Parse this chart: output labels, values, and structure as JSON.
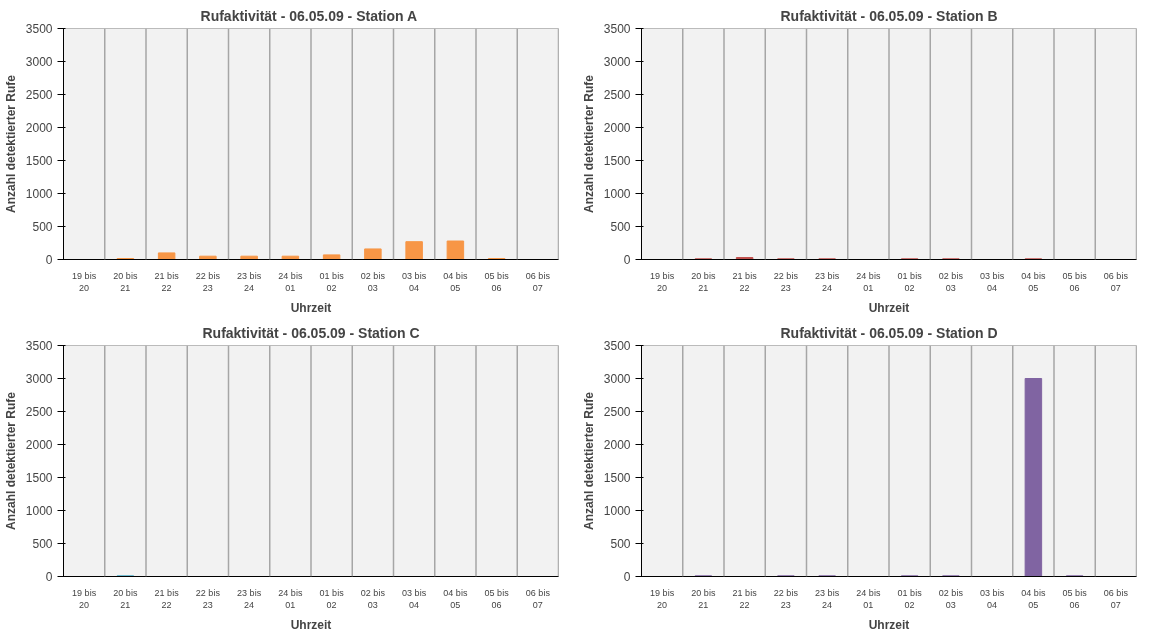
{
  "chart_data": [
    {
      "type": "bar",
      "title": "Rufaktivität - 06.05.09  - Station A",
      "xlabel": "Uhrzeit",
      "ylabel": "Anzahl detektierter Rufe",
      "categories": [
        "19 bis 20",
        "20 bis 21",
        "21 bis 22",
        "22 bis 23",
        "23 bis 24",
        "24 bis 01",
        "01 bis 02",
        "02 bis 03",
        "03 bis 04",
        "04 bis 05",
        "05 bis 06",
        "06 bis 07"
      ],
      "values": [
        0,
        15,
        100,
        50,
        50,
        50,
        70,
        160,
        270,
        280,
        15,
        0
      ],
      "color": "#f79646",
      "ylim": [
        0,
        3500
      ],
      "yticks": [
        0,
        500,
        1000,
        1500,
        2000,
        2500,
        3000,
        3500
      ],
      "grid": "x"
    },
    {
      "type": "bar",
      "title": "Rufaktivität - 06.05.09 - Station B",
      "xlabel": "Uhrzeit",
      "ylabel": "Anzahl detektierter Rufe",
      "categories": [
        "19 bis 20",
        "20 bis 21",
        "21 bis 22",
        "22 bis 23",
        "23 bis 24",
        "24 bis 01",
        "01 bis 02",
        "02 bis 03",
        "03 bis 04",
        "04 bis 05",
        "05 bis 06",
        "06 bis 07"
      ],
      "values": [
        0,
        10,
        30,
        10,
        10,
        0,
        10,
        10,
        0,
        10,
        0,
        0
      ],
      "color": "#c0504d",
      "ylim": [
        0,
        3500
      ],
      "yticks": [
        0,
        500,
        1000,
        1500,
        2000,
        2500,
        3000,
        3500
      ],
      "grid": "x"
    },
    {
      "type": "bar",
      "title": "Rufaktivität - 06.05.09 - Station C",
      "xlabel": "Uhrzeit",
      "ylabel": "Anzahl detektierter Rufe",
      "categories": [
        "19 bis 20",
        "20 bis 21",
        "21 bis 22",
        "22 bis 23",
        "23 bis 24",
        "24 bis 01",
        "01 bis 02",
        "02 bis 03",
        "03 bis 04",
        "04 bis 05",
        "05 bis 06",
        "06 bis 07"
      ],
      "values": [
        0,
        10,
        0,
        0,
        0,
        0,
        0,
        0,
        0,
        0,
        0,
        0
      ],
      "color": "#4bacc6",
      "ylim": [
        0,
        3500
      ],
      "yticks": [
        0,
        500,
        1000,
        1500,
        2000,
        2500,
        3000,
        3500
      ],
      "grid": "x"
    },
    {
      "type": "bar",
      "title": "Rufaktivität - 06.05.09 - Station D",
      "xlabel": "Uhrzeit",
      "ylabel": "Anzahl detektierter Rufe",
      "categories": [
        "19 bis 20",
        "20 bis 21",
        "21 bis 22",
        "22 bis 23",
        "23 bis 24",
        "24 bis 01",
        "01 bis 02",
        "02 bis 03",
        "03 bis 04",
        "04 bis 05",
        "05 bis 06",
        "06 bis 07"
      ],
      "values": [
        0,
        10,
        0,
        10,
        10,
        0,
        10,
        10,
        0,
        3000,
        10,
        0
      ],
      "color": "#8064a2",
      "ylim": [
        0,
        3500
      ],
      "yticks": [
        0,
        500,
        1000,
        1500,
        2000,
        2500,
        3000,
        3500
      ],
      "grid": "x"
    }
  ]
}
